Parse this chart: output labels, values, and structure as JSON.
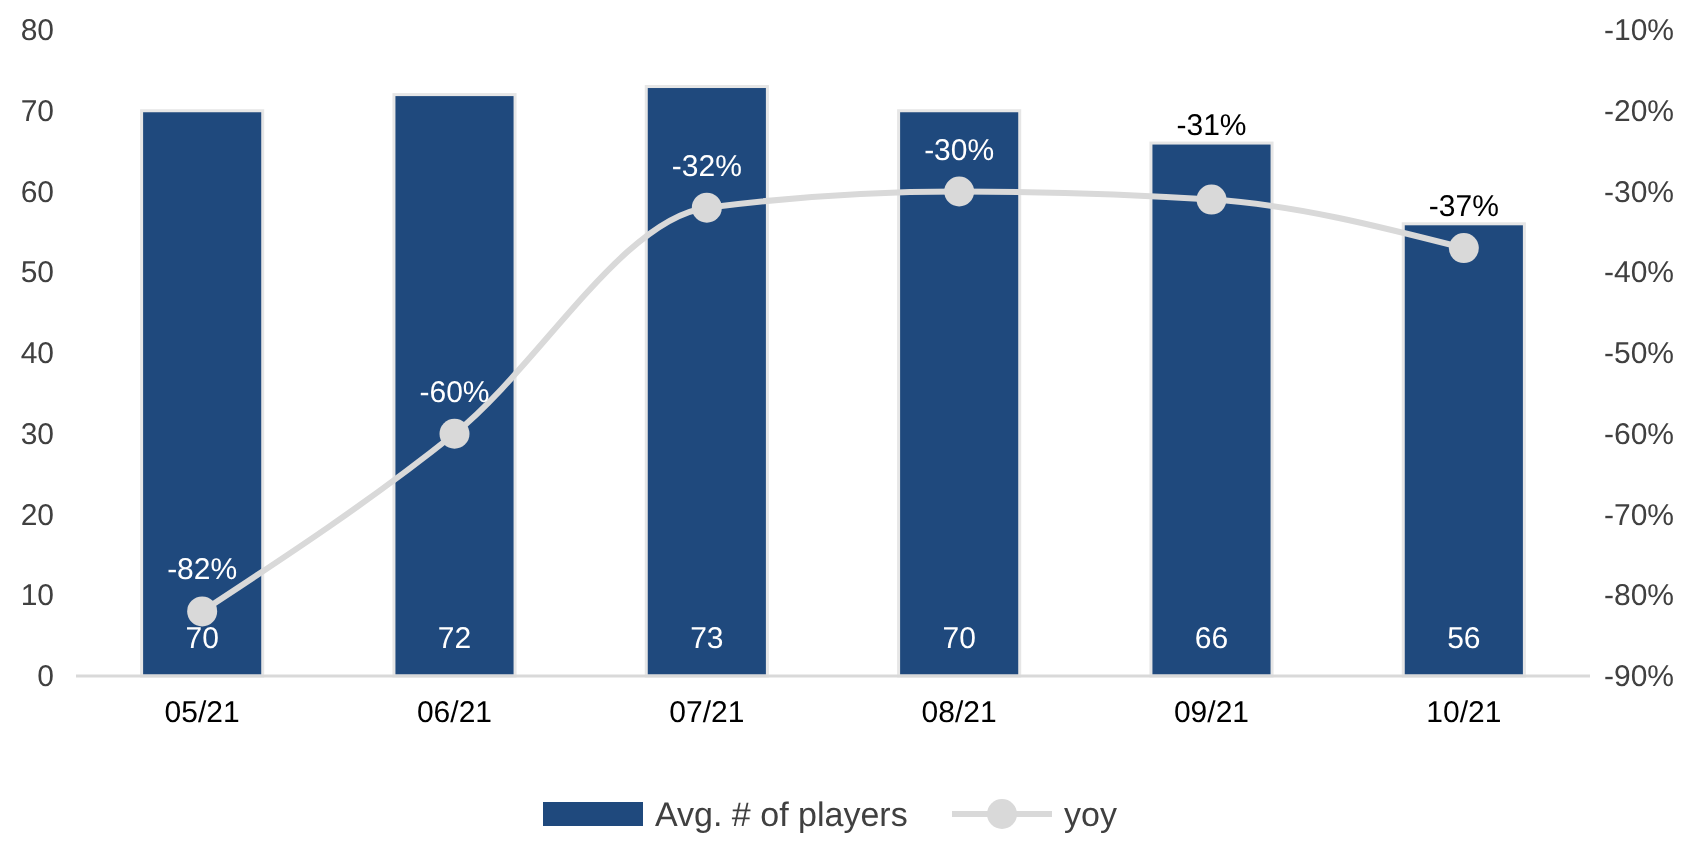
{
  "chart_data": {
    "type": "bar",
    "categories": [
      "05/21",
      "06/21",
      "07/21",
      "08/21",
      "09/21",
      "10/21"
    ],
    "series": [
      {
        "name": "Avg. # of players",
        "color": "#1f497d",
        "values": [
          70,
          72,
          73,
          70,
          66,
          56
        ],
        "value_labels": [
          "70",
          "72",
          "73",
          "70",
          "66",
          "56"
        ]
      },
      {
        "name": "yoy",
        "type": "line",
        "axis": "y2",
        "color": "#d9d9d9",
        "values": [
          -82,
          -60,
          -32,
          -30,
          -31,
          -37
        ],
        "value_labels": [
          "-82%",
          "-60%",
          "-32%",
          "-30%",
          "-31%",
          "-37%"
        ]
      }
    ],
    "ylim": [
      0,
      80
    ],
    "yticks": [
      0,
      10,
      20,
      30,
      40,
      50,
      60,
      70,
      80
    ],
    "y2lim": [
      -90,
      -10
    ],
    "y2ticks": [
      {
        "value": -90,
        "label": "-90%"
      },
      {
        "value": -80,
        "label": "-80%"
      },
      {
        "value": -70,
        "label": "-70%"
      },
      {
        "value": -60,
        "label": "-60%"
      },
      {
        "value": -50,
        "label": "-50%"
      },
      {
        "value": -40,
        "label": "-40%"
      },
      {
        "value": -30,
        "label": "-30%"
      },
      {
        "value": -20,
        "label": "-20%"
      },
      {
        "value": -10,
        "label": "-10%"
      }
    ],
    "grid": false,
    "legend": "bottom",
    "marker": "circle",
    "line_style": "solid"
  }
}
